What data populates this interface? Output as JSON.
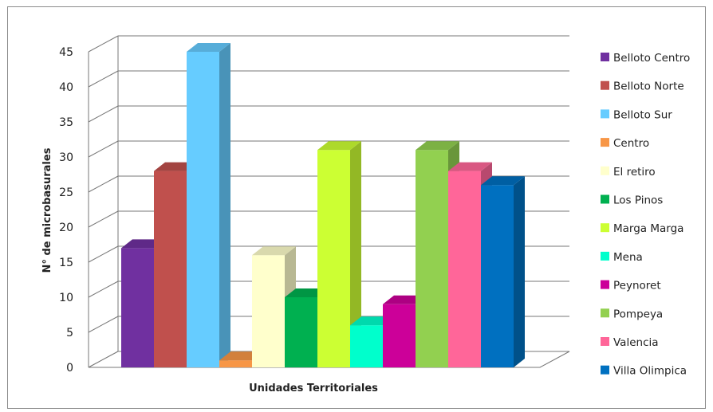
{
  "chart_data": {
    "type": "bar",
    "title": "",
    "xlabel": "Unidades Territoriales",
    "ylabel": "N° de microbasurales",
    "ylim": [
      0,
      45
    ],
    "yticks": [
      0,
      5,
      10,
      15,
      20,
      25,
      30,
      35,
      40,
      45
    ],
    "legend_position": "right",
    "grid": true,
    "three_d": true,
    "series": [
      {
        "name": "Belloto Centro",
        "value": 17,
        "color": "#7030a0"
      },
      {
        "name": "Belloto Norte",
        "value": 28,
        "color": "#c0504d"
      },
      {
        "name": "Belloto Sur",
        "value": 45,
        "color": "#66ccff"
      },
      {
        "name": "Centro",
        "value": 1,
        "color": "#f79646"
      },
      {
        "name": "El retiro",
        "value": 16,
        "color": "#ffffcc"
      },
      {
        "name": "Los Pinos",
        "value": 10,
        "color": "#00b050"
      },
      {
        "name": "Marga Marga",
        "value": 31,
        "color": "#ccff33"
      },
      {
        "name": "Mena",
        "value": 6,
        "color": "#00ffcc"
      },
      {
        "name": "Peynoret",
        "value": 9,
        "color": "#cc0099"
      },
      {
        "name": "Pompeya",
        "value": 31,
        "color": "#92d050"
      },
      {
        "name": "Valencia",
        "value": 28,
        "color": "#ff6699"
      },
      {
        "name": "Villa Olimpica",
        "value": 26,
        "color": "#0070c0"
      }
    ]
  }
}
